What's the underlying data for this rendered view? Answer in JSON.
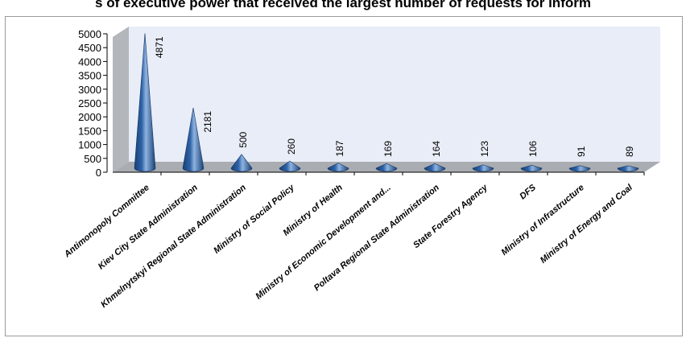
{
  "chart_data": {
    "type": "bar",
    "title": "s of executive power that received the largest number of requests for inform",
    "categories": [
      "Antimonopoly Committee",
      "Kiev City State Administration",
      "Khmelnytskyi Regional State Administration",
      "Ministry of Social Policy",
      "Ministry of Health",
      "Ministry of Economic Development and...",
      "Poltava Regional State Administration",
      "State Forestry Agency",
      "DFS",
      "Ministry of Infrastructure",
      "Ministry of Energy and Coal"
    ],
    "values": [
      4871,
      2181,
      500,
      260,
      187,
      169,
      164,
      123,
      106,
      91,
      89
    ],
    "data_labels": [
      "4871",
      "2181",
      "500",
      "260",
      "187",
      "169",
      "164",
      "123",
      "106",
      "91",
      "89"
    ],
    "yticks": [
      "5000",
      "4500",
      "4000",
      "3500",
      "3000",
      "2500",
      "2000",
      "1500",
      "1000",
      "500",
      "0"
    ],
    "ylim": [
      0,
      5000
    ],
    "xlabel": "",
    "ylabel": "",
    "legend": "none",
    "grid": false,
    "style": "3d-cone",
    "colors": {
      "cone_dark": "#173f73",
      "cone_mid": "#2f63a6",
      "cone_light": "#8fb3e0",
      "wall": "#e9edf7",
      "floor": "#a9acb1"
    }
  }
}
